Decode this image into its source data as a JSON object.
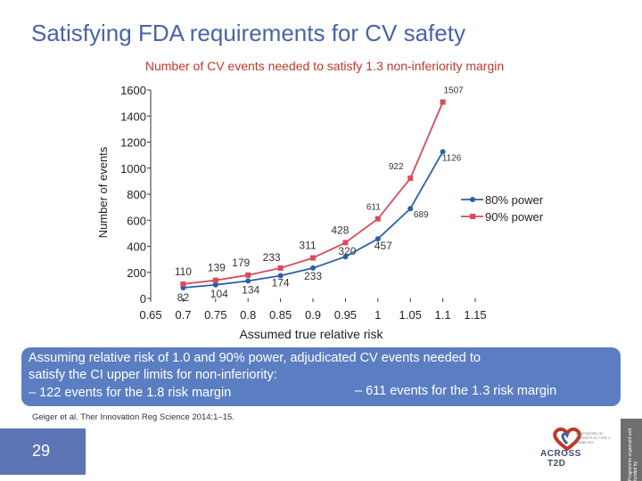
{
  "slide": {
    "title": "Satisfying FDA requirements for CV safety",
    "page_number": "29",
    "citation": "Geiger et al. Ther Innovation Reg Science 2014;1–15.",
    "info_box": {
      "line1": "Assuming relative risk of 1.0 and 90% power, adjudicated CV events needed to",
      "line2": "satisfy the CI upper limits for non-inferiority:",
      "line3_left": "–  122 events for the 1.8 risk margin",
      "line3_right": "– 611 events for the 1.3 risk margin"
    },
    "logo": {
      "text_line1": "ACROSS",
      "text_line2": "T2D",
      "tagline": "A NETWORK OF EXPERTS IN TYPE 2 DIABETES",
      "strip_text": "Programme organised and funded by"
    },
    "colors": {
      "title": "#4a63a8",
      "subtitle": "#c0392b",
      "series_80": "#2c5fa8",
      "series_90": "#d94a5a",
      "info_box": "#5b7ec2"
    }
  },
  "chart_data": {
    "type": "line",
    "title": "Number of CV events needed to satisfy 1.3 non-inferiority margin",
    "xlabel": "Assumed true relative risk",
    "ylabel": "Number of events",
    "x": [
      0.7,
      0.75,
      0.8,
      0.85,
      0.9,
      0.95,
      1,
      1.05,
      1.1
    ],
    "xlim": [
      0.65,
      1.15
    ],
    "ylim": [
      0,
      1600
    ],
    "x_ticks": [
      "0.65",
      "0.7",
      "0.75",
      "0.8",
      "0.85",
      "0.9",
      "0.95",
      "1",
      "1.05",
      "1.1",
      "1.15"
    ],
    "y_ticks": [
      "0",
      "200",
      "400",
      "600",
      "800",
      "1000",
      "1200",
      "1400",
      "1600"
    ],
    "legend_position": "right",
    "series": [
      {
        "name": "80% power",
        "values": [
          82,
          104,
          134,
          174,
          233,
          320,
          457,
          689,
          1126
        ],
        "labels": [
          "82",
          "104",
          "134",
          "174",
          "233",
          "320",
          "457",
          "689",
          "1126"
        ]
      },
      {
        "name": "90% power",
        "values": [
          110,
          139,
          179,
          233,
          311,
          428,
          611,
          922,
          1507
        ],
        "labels": [
          "110",
          "139",
          "179",
          "233",
          "311",
          "428",
          "611",
          "922",
          "1507"
        ]
      }
    ]
  }
}
